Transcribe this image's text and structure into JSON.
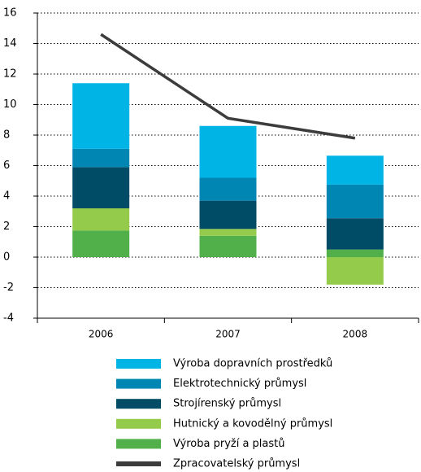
{
  "chart_data": {
    "type": "bar",
    "categories": [
      "2006",
      "2007",
      "2008"
    ],
    "series": [
      {
        "name": "Výroba dopravních prostředků",
        "color": "#00b4e6",
        "values": [
          4.3,
          3.4,
          1.9
        ]
      },
      {
        "name": "Elektrotechnický průmysl",
        "color": "#0086b3",
        "values": [
          1.2,
          1.5,
          2.2
        ]
      },
      {
        "name": "Strojírenský průmysl",
        "color": "#004c66",
        "values": [
          2.7,
          1.85,
          2.05
        ]
      },
      {
        "name": "Hutnický a kovodělný průmysl",
        "color": "#94cb4b",
        "values": [
          1.45,
          0.45,
          -1.8
        ]
      },
      {
        "name": "Výroba pryží a plastů",
        "color": "#52b04a",
        "values": [
          1.75,
          1.4,
          0.5
        ]
      },
      {
        "name": "Zpracovatelský průmysl",
        "color": "#3c3c3c",
        "type": "line",
        "values": [
          14.6,
          9.1,
          7.8
        ]
      }
    ],
    "ylim": [
      -4,
      16
    ],
    "yticks": [
      -4,
      -2,
      0,
      2,
      4,
      6,
      8,
      10,
      12,
      14,
      16
    ],
    "grid": true
  }
}
